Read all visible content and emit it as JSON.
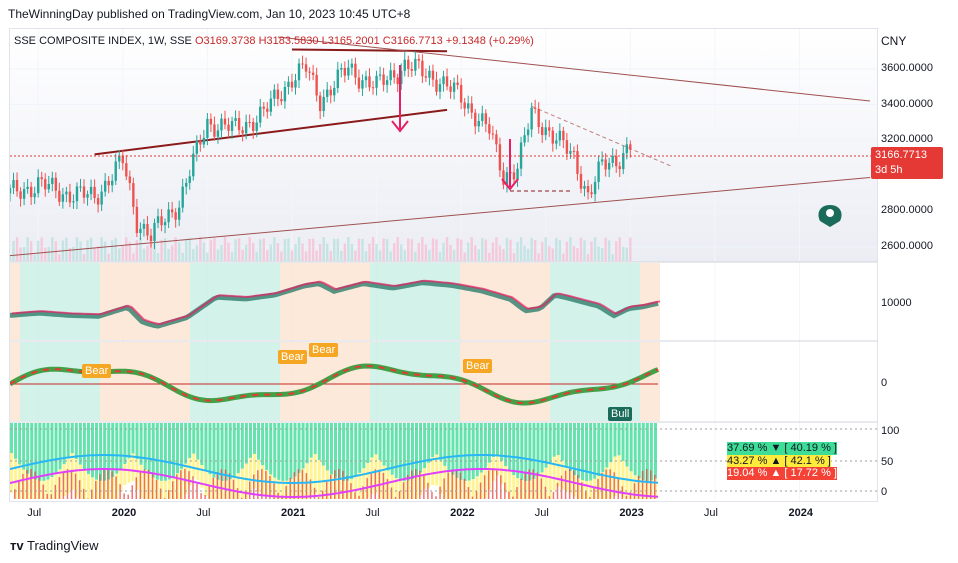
{
  "header": {
    "publisher": "TheWinningDay published on TradingView.com, Jan 10, 2023 10:45 UTC+8"
  },
  "legend": {
    "symbol": "SSE COMPOSITE INDEX, 1W, SSE",
    "open": "O3169.3738",
    "high": "H3183.5830",
    "low": "L3165.2001",
    "close": "C3166.7713",
    "change": "+9.1348 (+0.29%)"
  },
  "currency": "CNY",
  "price_badge": {
    "price": "3166.7713",
    "countdown": "3d 5h"
  },
  "pane_labels": {
    "osc_level": "10000",
    "zero_level": "0",
    "rsi_100": "100",
    "rsi_50": "50",
    "rsi_0": "0"
  },
  "signals": [
    {
      "text": "Bear",
      "color": "#f5a623"
    },
    {
      "text": "Bear",
      "color": "#f5a623"
    },
    {
      "text": "Bear",
      "color": "#f5a623"
    },
    {
      "text": "Bear",
      "color": "#f5a623"
    },
    {
      "text": "Bull",
      "color": "#1b6b5a"
    }
  ],
  "stats": [
    {
      "left": "37.69 %",
      "arrow": "▼",
      "right": "[ 40.19 % ]",
      "bg": "#3ddc97"
    },
    {
      "left": "43.27 %",
      "arrow": "▲",
      "right": "[ 42.1 % ]",
      "bg": "#ffeb3b"
    },
    {
      "left": "19.04 %",
      "arrow": "▲",
      "right": "[ 17.72 % ]",
      "bg": "#f44336"
    }
  ],
  "footer": "TradingView",
  "chart_data": {
    "type": "line",
    "title": "SSE COMPOSITE INDEX, 1W, SSE",
    "y_axis": {
      "ticks": [
        2600,
        2800,
        3000,
        3200,
        3400,
        3600
      ],
      "tick_labels": [
        "2600.0000",
        "2800.0000",
        "3000.0000",
        "3200.0000",
        "3400.0000",
        "3600.0000"
      ],
      "range": [
        2520,
        3780
      ]
    },
    "x_axis": {
      "labels": [
        "Jul",
        "2020",
        "Jul",
        "2021",
        "Jul",
        "2022",
        "Jul",
        "2023",
        "Jul",
        "2024"
      ],
      "bold": [
        false,
        true,
        false,
        true,
        false,
        true,
        false,
        true,
        false,
        true
      ],
      "range": [
        "2019-05",
        "2024-06"
      ]
    },
    "series": [
      {
        "name": "close",
        "x": [
          "2019-05",
          "2019-07",
          "2019-09",
          "2019-11",
          "2020-01",
          "2020-02",
          "2020-03",
          "2020-05",
          "2020-07",
          "2020-09",
          "2020-11",
          "2021-01",
          "2021-02",
          "2021-03",
          "2021-05",
          "2021-07",
          "2021-09",
          "2021-11",
          "2022-01",
          "2022-03",
          "2022-04",
          "2022-05",
          "2022-06",
          "2022-07",
          "2022-09",
          "2022-10",
          "2022-11",
          "2022-12",
          "2023-01"
        ],
        "values": [
          2900,
          2950,
          2900,
          2880,
          3080,
          2750,
          2660,
          2850,
          3300,
          3260,
          3350,
          3550,
          3600,
          3430,
          3600,
          3500,
          3620,
          3560,
          3440,
          3250,
          3000,
          3050,
          3350,
          3270,
          3100,
          2890,
          3050,
          3090,
          3166
        ]
      }
    ],
    "trendlines": [
      {
        "from": [
          "2019-11",
          3120
        ],
        "to": [
          "2021-12",
          3370
        ]
      },
      {
        "from": [
          "2021-01",
          3710
        ],
        "to": [
          "2021-12",
          3700
        ]
      },
      {
        "from": [
          "2019-05",
          2550
        ],
        "to": [
          "2024-06",
          2990
        ]
      },
      {
        "from": [
          "2020-12",
          3780
        ],
        "to": [
          "2024-06",
          3420
        ]
      }
    ],
    "grid": true,
    "current_price": 3166.7713
  }
}
